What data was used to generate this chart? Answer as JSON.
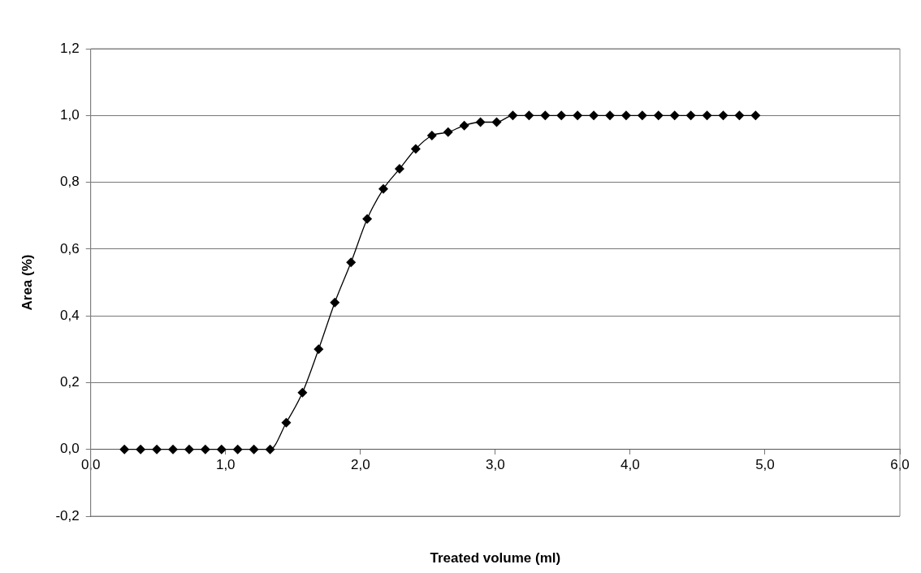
{
  "chart_data": {
    "type": "line",
    "xlabel": "Treated volume (ml)",
    "ylabel": "Area (%)",
    "x": [
      0.25,
      0.37,
      0.49,
      0.61,
      0.73,
      0.85,
      0.97,
      1.09,
      1.21,
      1.33,
      1.45,
      1.57,
      1.69,
      1.81,
      1.93,
      2.05,
      2.17,
      2.29,
      2.41,
      2.53,
      2.65,
      2.77,
      2.89,
      3.01,
      3.13,
      3.25,
      3.37,
      3.49,
      3.61,
      3.73,
      3.85,
      3.97,
      4.09,
      4.21,
      4.33,
      4.45,
      4.57,
      4.69,
      4.81,
      4.93
    ],
    "series": [
      {
        "color": "#000000",
        "values": [
          0,
          0,
          0,
          0,
          0,
          0,
          0,
          0,
          0,
          0,
          0.08,
          0.17,
          0.3,
          0.44,
          0.56,
          0.69,
          0.78,
          0.84,
          0.9,
          0.94,
          0.95,
          0.97,
          0.98,
          0.98,
          1,
          1,
          1,
          1,
          1,
          1,
          1,
          1,
          1,
          1,
          1,
          1,
          1,
          1,
          1,
          1
        ]
      }
    ],
    "xlim": [
      0,
      6
    ],
    "xticks": [
      {
        "value": 0,
        "label": "0,0"
      },
      {
        "value": 1,
        "label": "1,0"
      },
      {
        "value": 2,
        "label": "2,0"
      },
      {
        "value": 3,
        "label": "3,0"
      },
      {
        "value": 4,
        "label": "4,0"
      },
      {
        "value": 5,
        "label": "5,0"
      },
      {
        "value": 6,
        "label": "6,0"
      }
    ],
    "ylim": [
      -0.2,
      1.2
    ],
    "yticks": [
      {
        "value": -0.2,
        "label": "-0,2"
      },
      {
        "value": 0,
        "label": "0,0"
      },
      {
        "value": 0.2,
        "label": "0,2"
      },
      {
        "value": 0.4,
        "label": "0,4"
      },
      {
        "value": 0.6,
        "label": "0,6"
      },
      {
        "value": 0.8,
        "label": "0,8"
      },
      {
        "value": 1,
        "label": "1,0"
      },
      {
        "value": 1.2,
        "label": "1,2"
      }
    ],
    "grid": "y",
    "legend": false,
    "marker": "diamond",
    "line_style": "solid"
  }
}
